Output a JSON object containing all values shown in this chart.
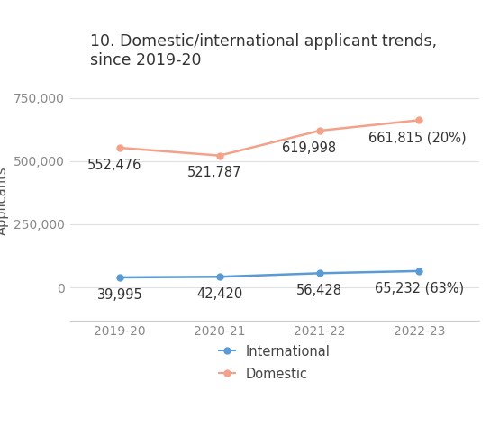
{
  "title": "10. Domestic/international applicant trends,\nsince 2019-20",
  "years": [
    "2019-20",
    "2020-21",
    "2021-22",
    "2022-23"
  ],
  "international": [
    39995,
    42420,
    56428,
    65232
  ],
  "domestic": [
    552476,
    521787,
    619998,
    661815
  ],
  "int_labels": [
    "39,995",
    "42,420",
    "56,428",
    "65,232 (63%)"
  ],
  "dom_labels": [
    "552,476",
    "521,787",
    "619,998",
    "661,815 (20%)"
  ],
  "int_color": "#5b9bd5",
  "dom_color": "#f4a18a",
  "ylabel": "Applicants",
  "yticks": [
    0,
    250000,
    500000,
    750000
  ],
  "ytick_labels": [
    "0",
    "250,000",
    "500,000",
    "750,000"
  ],
  "bg_color": "#ffffff",
  "title_fontsize": 12.5,
  "label_fontsize": 10.5,
  "tick_fontsize": 10,
  "legend_fontsize": 10.5
}
